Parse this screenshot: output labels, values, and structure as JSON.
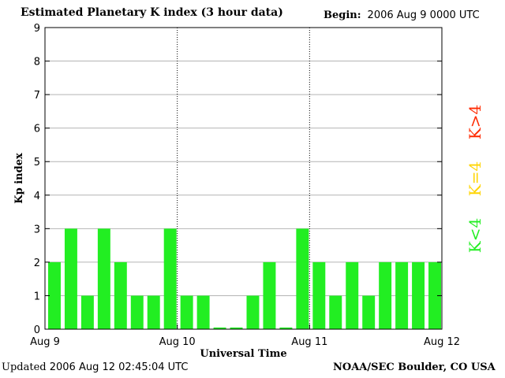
{
  "header": {
    "title": "Estimated Planetary K index (3 hour data)",
    "begin_label": "Begin:",
    "begin_value": "2006 Aug 9 0000 UTC"
  },
  "footer": {
    "updated_label": "Updated",
    "updated_value": "2006 Aug 12 02:45:04 UTC",
    "source": "NOAA/SEC Boulder, CO USA"
  },
  "legend": [
    {
      "label": "K>4",
      "color": "#ff2a00"
    },
    {
      "label": "K=4",
      "color": "#ffd400"
    },
    {
      "label": "K<4",
      "color": "#22ee22"
    }
  ],
  "chart_data": {
    "type": "bar",
    "title": "Estimated Planetary K index (3 hour data)",
    "xlabel": "Universal Time",
    "ylabel": "Kp index",
    "ylim": [
      0,
      9
    ],
    "yticks": [
      0,
      1,
      2,
      3,
      4,
      5,
      6,
      7,
      8,
      9
    ],
    "xtick_labels": [
      "Aug 9",
      "Aug 10",
      "Aug 11",
      "Aug 12"
    ],
    "day_dividers": [
      "Aug 10",
      "Aug 11"
    ],
    "bar_interval_hours": 3,
    "bar_color": "#22ee22",
    "values": [
      2,
      3,
      1,
      3,
      2,
      1,
      1,
      3,
      1,
      1,
      0.05,
      0.05,
      1,
      2,
      0.05,
      3,
      2,
      1,
      2,
      1,
      2,
      2,
      2,
      2
    ]
  }
}
